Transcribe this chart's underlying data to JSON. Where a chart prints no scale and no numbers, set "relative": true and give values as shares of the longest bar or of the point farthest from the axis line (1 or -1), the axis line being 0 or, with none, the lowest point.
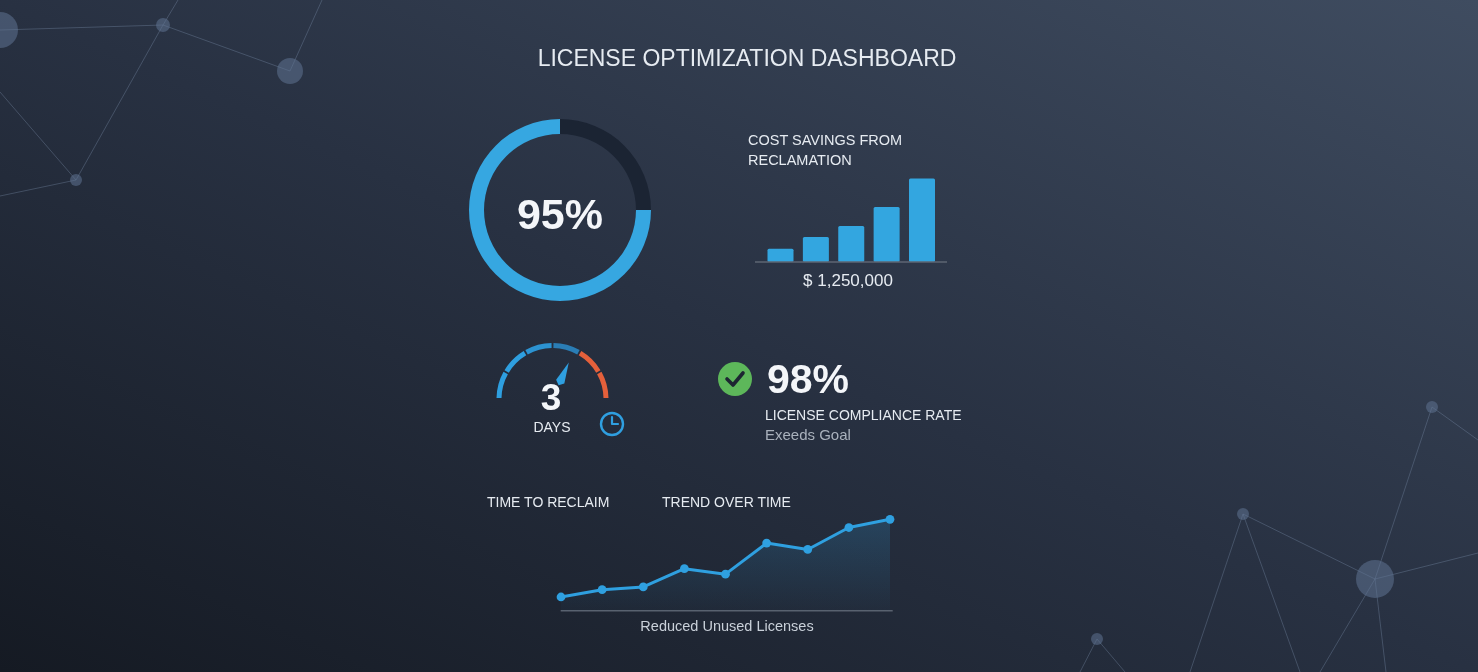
{
  "chart_data": [
    {
      "type": "other",
      "title": "LICENSE OPTIMIZATION DASHBOARD"
    },
    {
      "type": "donut",
      "categories": [
        null,
        null
      ],
      "values": [
        75,
        25
      ],
      "colors": [
        "#36a7e1",
        "#1b2433"
      ],
      "annotations": [
        "95%"
      ]
    },
    {
      "type": "bar",
      "title": "COST SAVINGS FROM RECLAMATION",
      "xlabel": "$ 1,250,000",
      "categories": [
        null,
        null,
        null,
        null,
        null
      ],
      "values": [
        0.16,
        0.3,
        0.43,
        0.66,
        1
      ],
      "color": "#33a6e0",
      "relative": true
    },
    {
      "type": "other",
      "title": "TIME TO RECLAIM",
      "annotations": [
        "3",
        "DAYS"
      ]
    },
    {
      "type": "other",
      "title": "LICENSE COMPLIANCE RATE",
      "annotations": [
        "98%",
        "Exeeds Goal"
      ]
    },
    {
      "type": "area",
      "title": "TREND OVER TIME",
      "xlabel": "Reduced Unused Licenses",
      "categories": [
        null,
        null,
        null,
        null,
        null,
        null,
        null,
        null,
        null
      ],
      "series": [
        {
          "color": "#2fa0e0",
          "values": [
            0.15,
            0.23,
            0.26,
            0.46,
            0.4,
            0.74,
            0.67,
            0.91,
            1
          ]
        }
      ],
      "relative": true,
      "marker": "circle"
    }
  ]
}
